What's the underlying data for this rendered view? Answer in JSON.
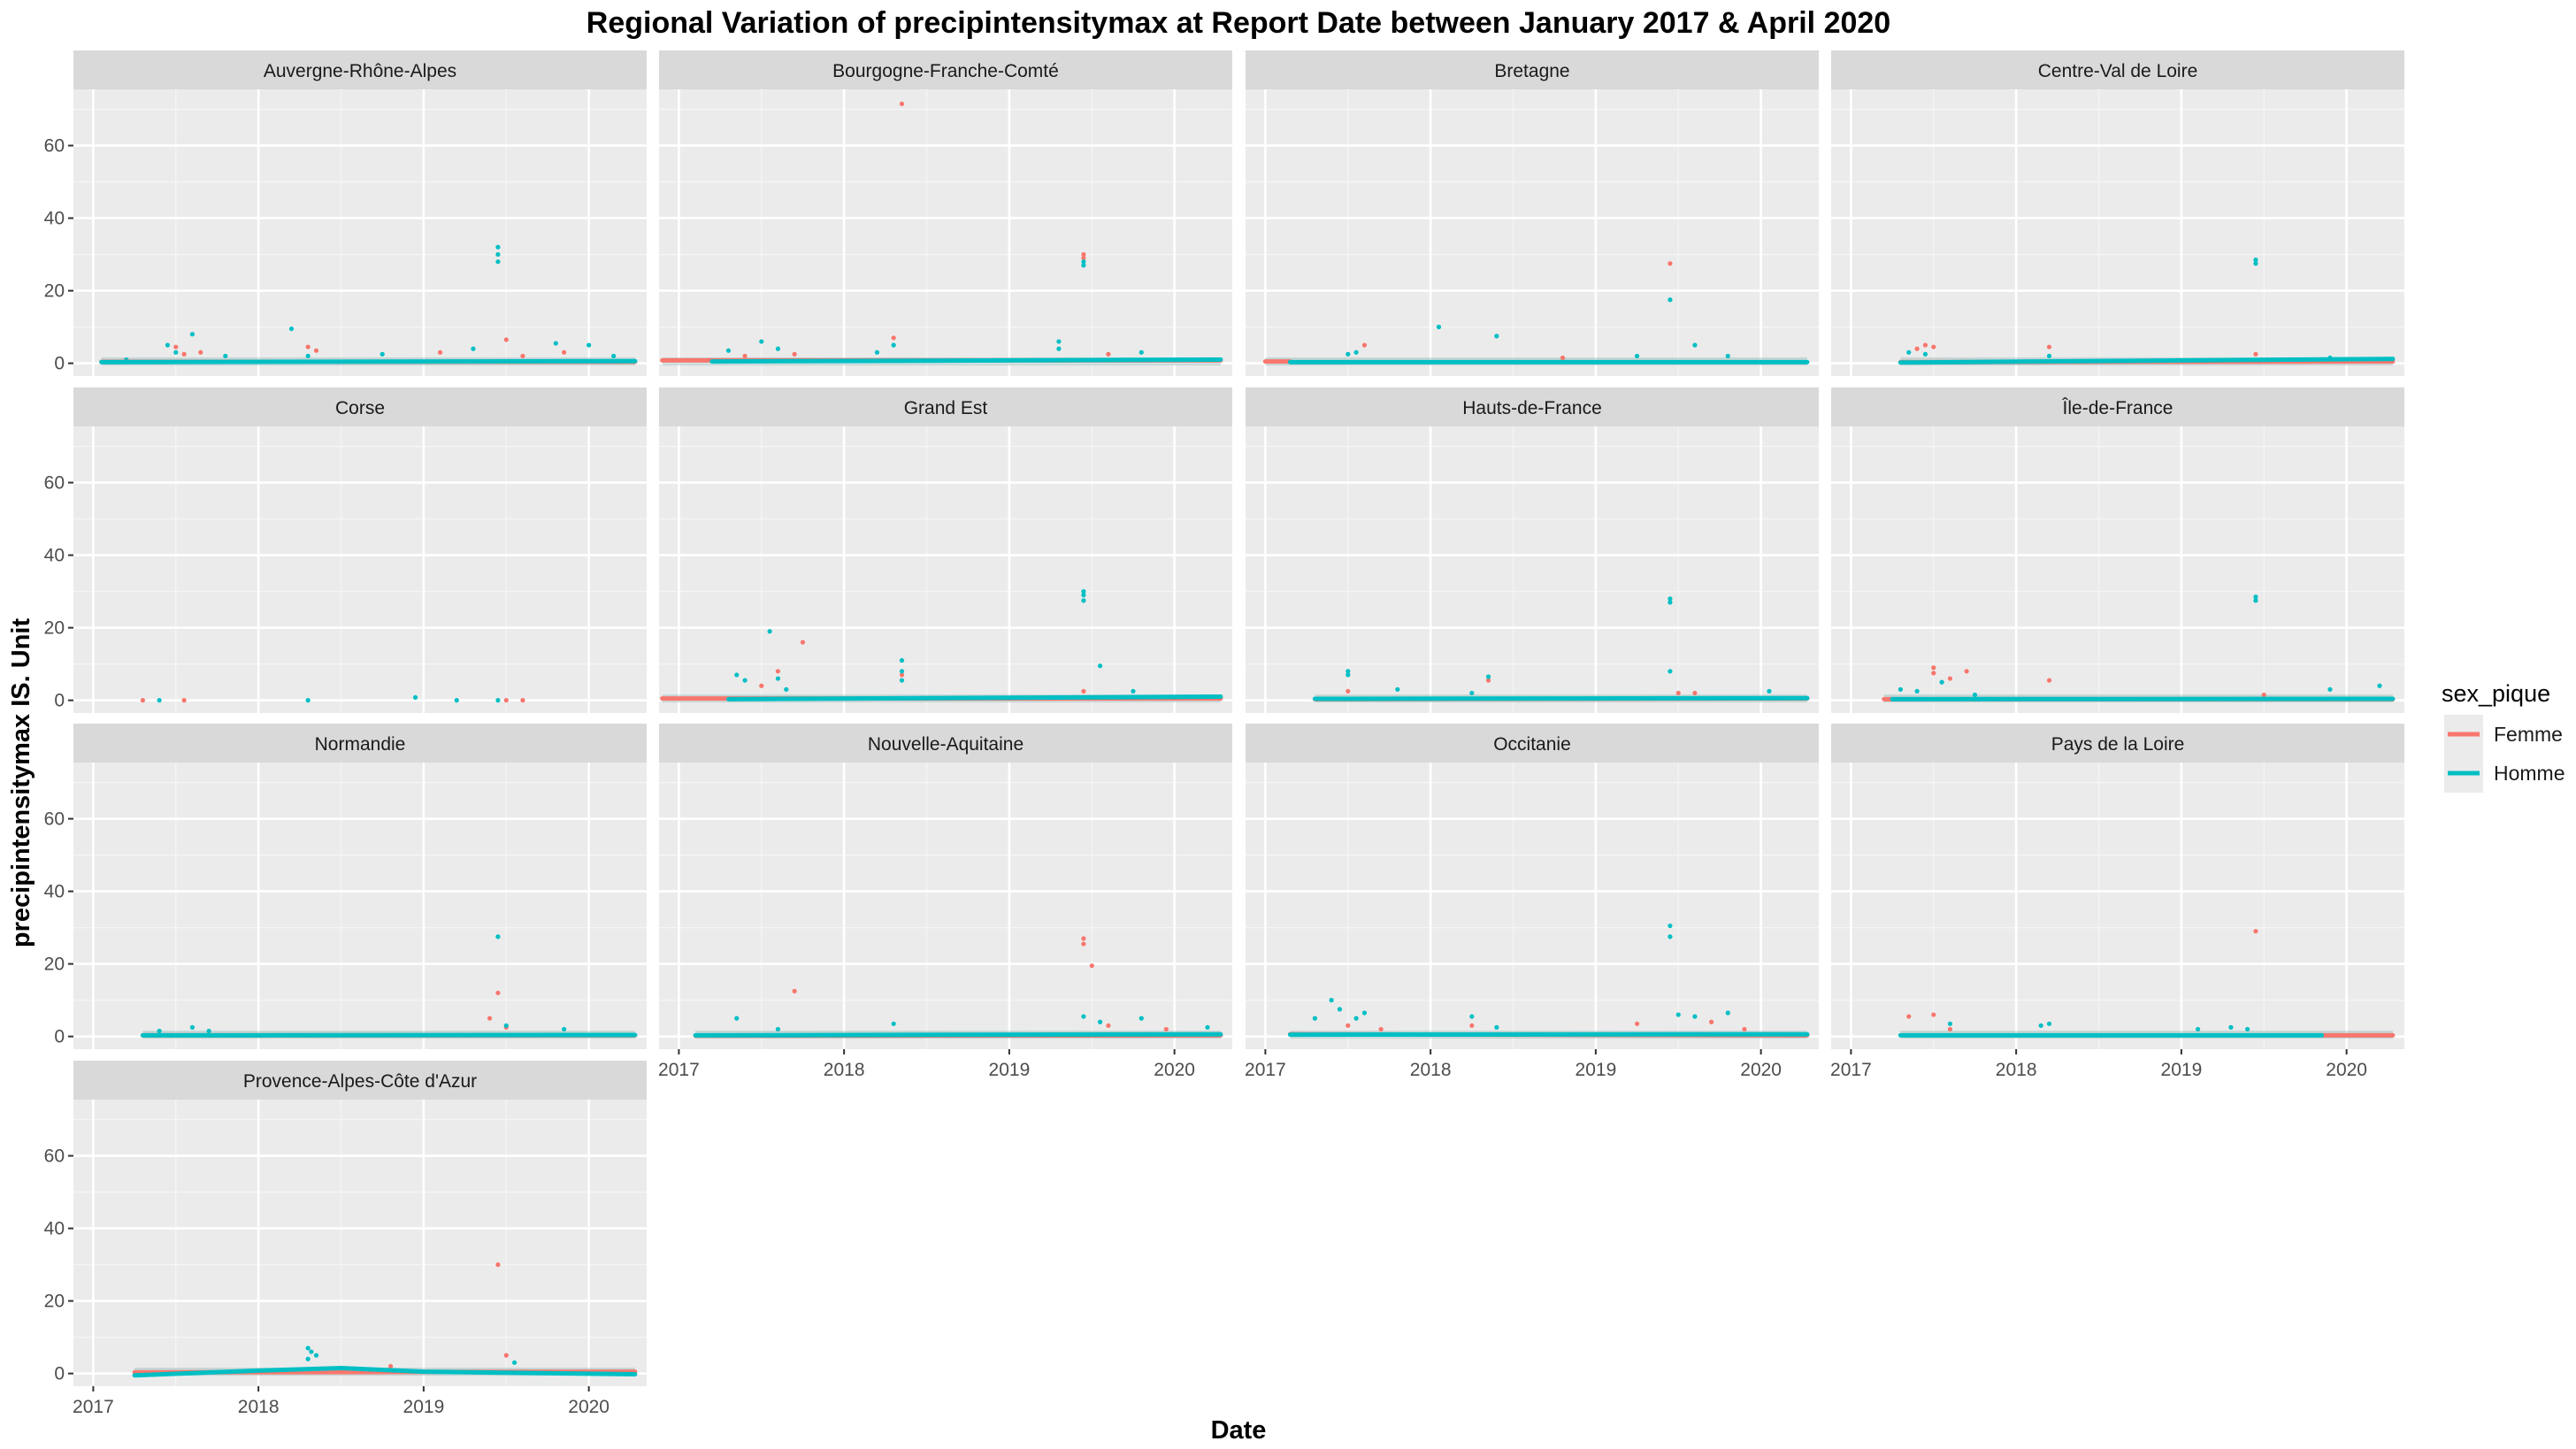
{
  "chart_data": {
    "type": "scatter",
    "title": "Regional Variation of  precipintensitymax  at Report Date between January 2017 & April 2020",
    "xlabel": "Date",
    "ylabel": "precipintensitymax  IS. Unit",
    "xlim": [
      2016.88,
      2020.35
    ],
    "ylim": [
      -3.5,
      75.5
    ],
    "x_ticks": [
      2017,
      2018,
      2019,
      2020
    ],
    "x_tick_labels": [
      "2017",
      "2018",
      "2019",
      "2020"
    ],
    "y_ticks": [
      0,
      20,
      40,
      60
    ],
    "y_tick_labels": [
      "0",
      "20",
      "40",
      "60"
    ],
    "grid": true,
    "legend": {
      "title": "sex_pique",
      "position": "right",
      "entries": [
        {
          "label": "Femme",
          "color": "#F8766D"
        },
        {
          "label": "Homme",
          "color": "#00BFC4"
        }
      ]
    },
    "colors": {
      "Femme": "#F8766D",
      "Homme": "#00BFC4"
    },
    "panels": [
      {
        "region": "Auvergne-Rhône-Alpes",
        "trend": {
          "Femme": {
            "x": [
              2017.05,
              2020.28
            ],
            "y": [
              0.4,
              0.4
            ]
          },
          "Homme": {
            "x": [
              2017.05,
              2020.28
            ],
            "y": [
              0.3,
              0.6
            ]
          }
        },
        "points": {
          "Femme": [
            [
              2017.5,
              4.5
            ],
            [
              2017.55,
              2.5
            ],
            [
              2017.65,
              3
            ],
            [
              2018.3,
              4.5
            ],
            [
              2018.35,
              3.5
            ],
            [
              2019.1,
              3
            ],
            [
              2019.5,
              6.5
            ],
            [
              2019.6,
              2
            ],
            [
              2019.85,
              3
            ]
          ],
          "Homme": [
            [
              2017.2,
              1
            ],
            [
              2017.45,
              5
            ],
            [
              2017.5,
              3
            ],
            [
              2017.6,
              8
            ],
            [
              2017.8,
              2
            ],
            [
              2018.2,
              9.5
            ],
            [
              2018.3,
              2
            ],
            [
              2018.75,
              2.5
            ],
            [
              2019.3,
              4
            ],
            [
              2019.45,
              32
            ],
            [
              2019.45,
              30
            ],
            [
              2019.45,
              28
            ],
            [
              2019.8,
              5.5
            ],
            [
              2020.0,
              5
            ],
            [
              2020.15,
              2
            ]
          ]
        }
      },
      {
        "region": "Bourgogne-Franche-Comté",
        "trend": {
          "Femme": {
            "x": [
              2016.9,
              2020.28
            ],
            "y": [
              0.8,
              0.8
            ]
          },
          "Homme": {
            "x": [
              2017.2,
              2020.28
            ],
            "y": [
              0.5,
              1.0
            ]
          }
        },
        "points": {
          "Femme": [
            [
              2017.4,
              2
            ],
            [
              2017.7,
              2.5
            ],
            [
              2018.3,
              7
            ],
            [
              2018.35,
              71.5
            ],
            [
              2019.45,
              30
            ],
            [
              2019.45,
              29
            ],
            [
              2019.6,
              2.5
            ]
          ],
          "Homme": [
            [
              2017.3,
              3.5
            ],
            [
              2017.5,
              6
            ],
            [
              2017.6,
              4
            ],
            [
              2018.2,
              3
            ],
            [
              2018.3,
              5
            ],
            [
              2019.3,
              6
            ],
            [
              2019.3,
              4
            ],
            [
              2019.45,
              28
            ],
            [
              2019.45,
              27
            ],
            [
              2019.8,
              3
            ]
          ]
        }
      },
      {
        "region": "Bretagne",
        "trend": {
          "Femme": {
            "x": [
              2017.0,
              2017.15
            ],
            "y": [
              0.5,
              0.5
            ]
          },
          "Homme": {
            "x": [
              2017.15,
              2020.28
            ],
            "y": [
              0.3,
              0.3
            ]
          }
        },
        "points": {
          "Femme": [
            [
              2017.6,
              5
            ],
            [
              2018.8,
              1.5
            ],
            [
              2019.45,
              27.5
            ]
          ],
          "Homme": [
            [
              2017.5,
              2.5
            ],
            [
              2017.55,
              3
            ],
            [
              2018.05,
              10
            ],
            [
              2018.4,
              7.5
            ],
            [
              2019.25,
              2
            ],
            [
              2019.45,
              17.5
            ],
            [
              2019.6,
              5
            ],
            [
              2019.8,
              2
            ]
          ]
        }
      },
      {
        "region": "Centre-Val de Loire",
        "trend": {
          "Femme": {
            "x": [
              2017.3,
              2020.28
            ],
            "y": [
              0.3,
              0.5
            ]
          },
          "Homme": {
            "x": [
              2017.3,
              2020.28
            ],
            "y": [
              0.2,
              1.2
            ]
          }
        },
        "points": {
          "Femme": [
            [
              2017.4,
              4
            ],
            [
              2017.45,
              5
            ],
            [
              2017.5,
              4.5
            ],
            [
              2018.2,
              4.5
            ],
            [
              2019.45,
              2.5
            ]
          ],
          "Homme": [
            [
              2017.35,
              3
            ],
            [
              2017.45,
              2.5
            ],
            [
              2018.2,
              2
            ],
            [
              2019.45,
              28.5
            ],
            [
              2019.45,
              27.5
            ],
            [
              2019.9,
              1.5
            ]
          ]
        }
      },
      {
        "region": "Corse",
        "trend": {},
        "points": {
          "Femme": [
            [
              2017.3,
              0
            ],
            [
              2017.55,
              0
            ],
            [
              2019.5,
              0
            ],
            [
              2019.6,
              0
            ]
          ],
          "Homme": [
            [
              2017.4,
              0
            ],
            [
              2018.3,
              0
            ],
            [
              2018.95,
              0.8
            ],
            [
              2019.2,
              0
            ],
            [
              2019.45,
              0
            ]
          ]
        }
      },
      {
        "region": "Grand Est",
        "trend": {
          "Femme": {
            "x": [
              2016.9,
              2020.28
            ],
            "y": [
              0.5,
              0.5
            ]
          },
          "Homme": {
            "x": [
              2017.3,
              2020.28
            ],
            "y": [
              0.3,
              1.0
            ]
          }
        },
        "points": {
          "Femme": [
            [
              2017.5,
              4
            ],
            [
              2017.6,
              8
            ],
            [
              2017.75,
              16
            ],
            [
              2018.35,
              7
            ],
            [
              2019.45,
              2.5
            ]
          ],
          "Homme": [
            [
              2017.35,
              7
            ],
            [
              2017.4,
              5.5
            ],
            [
              2017.55,
              19
            ],
            [
              2017.6,
              6
            ],
            [
              2017.65,
              3
            ],
            [
              2018.35,
              11
            ],
            [
              2018.35,
              8
            ],
            [
              2018.35,
              5.5
            ],
            [
              2019.45,
              30
            ],
            [
              2019.45,
              29
            ],
            [
              2019.45,
              27.5
            ],
            [
              2019.55,
              9.5
            ],
            [
              2019.75,
              2.5
            ]
          ]
        }
      },
      {
        "region": "Hauts-de-France",
        "trend": {
          "Femme": {
            "x": [
              2017.3,
              2020.28
            ],
            "y": [
              0.3,
              0.5
            ]
          },
          "Homme": {
            "x": [
              2017.3,
              2020.28
            ],
            "y": [
              0.4,
              0.6
            ]
          }
        },
        "points": {
          "Femme": [
            [
              2017.5,
              2.5
            ],
            [
              2018.35,
              5.5
            ],
            [
              2019.5,
              2
            ],
            [
              2019.6,
              2
            ]
          ],
          "Homme": [
            [
              2017.5,
              8
            ],
            [
              2017.5,
              7
            ],
            [
              2017.8,
              3
            ],
            [
              2018.25,
              2
            ],
            [
              2018.35,
              6.5
            ],
            [
              2019.45,
              28
            ],
            [
              2019.45,
              27
            ],
            [
              2019.45,
              8
            ],
            [
              2020.05,
              2.5
            ]
          ]
        }
      },
      {
        "region": "Île-de-France",
        "trend": {
          "Femme": {
            "x": [
              2017.2,
              2020.28
            ],
            "y": [
              0.3,
              0.3
            ]
          },
          "Homme": {
            "x": [
              2017.25,
              2020.28
            ],
            "y": [
              0.3,
              0.4
            ]
          }
        },
        "points": {
          "Femme": [
            [
              2017.5,
              9
            ],
            [
              2017.5,
              7.5
            ],
            [
              2017.6,
              6
            ],
            [
              2017.7,
              8
            ],
            [
              2018.2,
              5.5
            ],
            [
              2019.5,
              1.5
            ]
          ],
          "Homme": [
            [
              2017.3,
              3
            ],
            [
              2017.4,
              2.5
            ],
            [
              2017.55,
              5
            ],
            [
              2017.75,
              1.5
            ],
            [
              2019.45,
              28.5
            ],
            [
              2019.45,
              27.5
            ],
            [
              2019.9,
              3
            ],
            [
              2020.2,
              4
            ]
          ]
        }
      },
      {
        "region": "Normandie",
        "trend": {
          "Femme": {
            "x": [
              2017.3,
              2020.28
            ],
            "y": [
              0.3,
              0.3
            ]
          },
          "Homme": {
            "x": [
              2017.3,
              2020.28
            ],
            "y": [
              0.3,
              0.4
            ]
          }
        },
        "points": {
          "Femme": [
            [
              2019.4,
              5
            ],
            [
              2019.45,
              12
            ],
            [
              2019.5,
              2.5
            ]
          ],
          "Homme": [
            [
              2017.4,
              1.5
            ],
            [
              2017.6,
              2.5
            ],
            [
              2017.7,
              1.5
            ],
            [
              2019.45,
              27.5
            ],
            [
              2019.5,
              3
            ],
            [
              2019.85,
              2
            ]
          ]
        }
      },
      {
        "region": "Nouvelle-Aquitaine",
        "trend": {
          "Femme": {
            "x": [
              2017.1,
              2020.28
            ],
            "y": [
              0.2,
              0.3
            ]
          },
          "Homme": {
            "x": [
              2017.1,
              2020.28
            ],
            "y": [
              0.3,
              0.6
            ]
          }
        },
        "points": {
          "Femme": [
            [
              2017.7,
              12.5
            ],
            [
              2019.45,
              27
            ],
            [
              2019.45,
              25.5
            ],
            [
              2019.5,
              19.5
            ],
            [
              2019.6,
              3
            ],
            [
              2019.95,
              2
            ]
          ],
          "Homme": [
            [
              2017.35,
              5
            ],
            [
              2017.6,
              2
            ],
            [
              2018.3,
              3.5
            ],
            [
              2019.45,
              5.5
            ],
            [
              2019.55,
              4
            ],
            [
              2019.8,
              5
            ],
            [
              2020.2,
              2.5
            ]
          ]
        }
      },
      {
        "region": "Occitanie",
        "trend": {
          "Femme": {
            "x": [
              2017.15,
              2020.28
            ],
            "y": [
              0.6,
              0.3
            ]
          },
          "Homme": {
            "x": [
              2017.15,
              2020.28
            ],
            "y": [
              0.5,
              0.6
            ]
          }
        },
        "points": {
          "Femme": [
            [
              2017.5,
              3
            ],
            [
              2017.7,
              2
            ],
            [
              2018.25,
              3
            ],
            [
              2019.25,
              3.5
            ],
            [
              2019.7,
              4
            ],
            [
              2019.9,
              2
            ]
          ],
          "Homme": [
            [
              2017.3,
              5
            ],
            [
              2017.4,
              10
            ],
            [
              2017.45,
              7.5
            ],
            [
              2017.55,
              5
            ],
            [
              2017.6,
              6.5
            ],
            [
              2018.25,
              5.5
            ],
            [
              2018.4,
              2.5
            ],
            [
              2019.45,
              30.5
            ],
            [
              2019.45,
              27.5
            ],
            [
              2019.5,
              6
            ],
            [
              2019.6,
              5.5
            ],
            [
              2019.8,
              6.5
            ]
          ]
        }
      },
      {
        "region": "Pays de la Loire",
        "trend": {
          "Femme": {
            "x": [
              2019.85,
              2020.28
            ],
            "y": [
              0.3,
              0.3
            ]
          },
          "Homme": {
            "x": [
              2017.3,
              2019.85
            ],
            "y": [
              0.3,
              0.3
            ]
          }
        },
        "points": {
          "Femme": [
            [
              2017.35,
              5.5
            ],
            [
              2017.5,
              6
            ],
            [
              2017.6,
              2
            ],
            [
              2019.45,
              29
            ]
          ],
          "Homme": [
            [
              2017.6,
              3.5
            ],
            [
              2018.15,
              3
            ],
            [
              2018.2,
              3.5
            ],
            [
              2019.1,
              2
            ],
            [
              2019.3,
              2.5
            ],
            [
              2019.4,
              2
            ]
          ]
        }
      },
      {
        "region": "Provence-Alpes-Côte d'Azur",
        "trend": {
          "Femme": {
            "x": [
              2017.25,
              2020.28
            ],
            "y": [
              0.3,
              0.5
            ]
          },
          "Homme": {
            "x": [
              2017.25,
              2018.0,
              2018.5,
              2019.0,
              2020.28
            ],
            "y": [
              -0.5,
              0.8,
              1.5,
              0.5,
              -0.2
            ]
          }
        },
        "points": {
          "Femme": [
            [
              2018.5,
              1.5
            ],
            [
              2019.45,
              30
            ],
            [
              2019.5,
              5
            ],
            [
              2018.8,
              2
            ]
          ],
          "Homme": [
            [
              2018.3,
              7
            ],
            [
              2018.32,
              6
            ],
            [
              2018.35,
              5
            ],
            [
              2018.3,
              4
            ],
            [
              2019.55,
              3
            ]
          ]
        }
      }
    ]
  }
}
